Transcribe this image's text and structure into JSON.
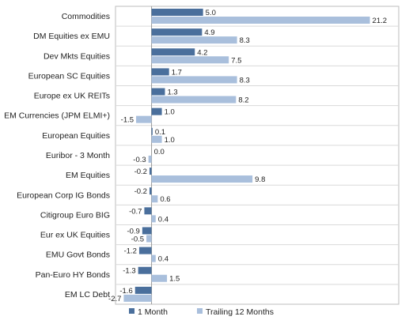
{
  "chart_data": {
    "type": "bar",
    "orientation": "horizontal",
    "categories": [
      "Commodities",
      "DM Equities ex EMU",
      "Dev Mkts Equities",
      "European SC Equities",
      "Europe ex UK REITs",
      "EM Currencies (JPM ELMI+)",
      "European Equities",
      "Euribor - 3 Month",
      "EM Equities",
      "European Corp IG Bonds",
      "Citigroup Euro BIG",
      "Eur ex UK Equities",
      "EMU Govt Bonds",
      "Pan-Euro HY Bonds",
      "EM LC Debt"
    ],
    "series": [
      {
        "name": "1 Month",
        "color": "#4a6f9c",
        "values": [
          5.0,
          4.9,
          4.2,
          1.7,
          1.3,
          1.0,
          0.1,
          0.0,
          -0.2,
          -0.2,
          -0.7,
          -0.9,
          -1.2,
          -1.3,
          -1.6
        ],
        "labels": [
          "5.0",
          "4.9",
          "4.2",
          "1.7",
          "1.3",
          "1.0",
          "0.1",
          "0.0",
          "-0.2",
          "-0.2",
          "-0.7",
          "-0.9",
          "-1.2",
          "-1.3",
          "-1.6"
        ]
      },
      {
        "name": "Trailing 12 Months",
        "color": "#a9bfdc",
        "values": [
          21.2,
          8.3,
          7.5,
          8.3,
          8.2,
          -1.5,
          1.0,
          -0.3,
          9.8,
          0.6,
          0.4,
          -0.5,
          0.4,
          1.5,
          -2.7
        ],
        "labels": [
          "21.2",
          "8.3",
          "7.5",
          "8.3",
          "8.2",
          "-1.5",
          "1.0",
          "-0.3",
          "9.8",
          "0.6",
          "0.4",
          "-0.5",
          "0.4",
          "1.5",
          "-2.7"
        ]
      }
    ],
    "xlim": [
      -3.5,
      24
    ],
    "grid": "horizontal separators",
    "legend_position": "bottom"
  }
}
